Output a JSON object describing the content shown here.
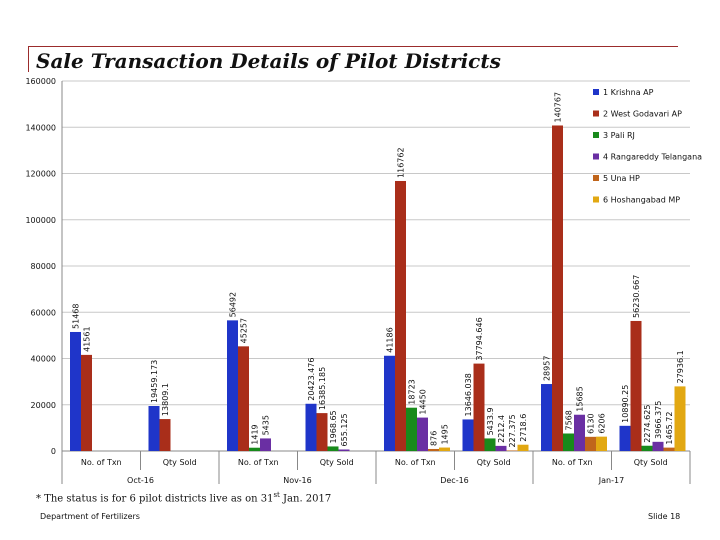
{
  "title": "Sale Transaction Details of Pilot Districts",
  "footnote": {
    "prefix": "* The status is for 6 pilot districts live as on 31",
    "sup": "st",
    "suffix": " Jan. 2017"
  },
  "footer": {
    "left": "Department of Fertilizers",
    "right": "Slide 18"
  },
  "colors": {
    "series": [
      "#1f35c9",
      "#a92e1a",
      "#188a1b",
      "#6a2fa3",
      "#c0651b",
      "#e2a812"
    ]
  },
  "chart_data": {
    "type": "bar",
    "ylim": [
      0,
      160000
    ],
    "yticks": [
      0,
      20000,
      40000,
      60000,
      80000,
      100000,
      120000,
      140000,
      160000
    ],
    "ytick_labels": [
      "0",
      "20000",
      "40000",
      "60000",
      "80000",
      "100000",
      "120000",
      "140000",
      "160000"
    ],
    "grid": true,
    "legend_position": "right",
    "months": [
      "Oct-16",
      "Nov-16",
      "Dec-16",
      "Jan-17"
    ],
    "metrics": [
      "No. of Txn",
      "Qty Sold"
    ],
    "categories": [
      "Oct-16 No. of Txn",
      "Oct-16 Qty Sold",
      "Nov-16 No. of Txn",
      "Nov-16 Qty Sold",
      "Dec-16 No. of Txn",
      "Dec-16 Qty Sold",
      "Jan-17 No. of Txn",
      "Jan-17 Qty Sold"
    ],
    "series": [
      {
        "name": "1 Krishna AP",
        "values": [
          51468,
          19459.173,
          56492,
          20423.476,
          41186,
          13646.038,
          28957,
          10890.25
        ],
        "labels": [
          "51468",
          "19459.173",
          "56492",
          "20423.476",
          "41186",
          "13646.038",
          "28957",
          "10890.25"
        ]
      },
      {
        "name": "2 West Godavari AP",
        "values": [
          41561,
          13809.1,
          45257,
          16385.185,
          116762,
          37794.646,
          140767,
          56230.667
        ],
        "labels": [
          "41561",
          "13809.1",
          "45257",
          "16385.185",
          "116762",
          "37794.646",
          "140767",
          "56230.667"
        ]
      },
      {
        "name": "3 Pali RJ",
        "values": [
          null,
          null,
          1419,
          1968.65,
          18723,
          5433.9,
          7568,
          2274.625
        ],
        "labels": [
          "",
          "",
          "1419",
          "1968.65",
          "18723",
          "5433.9",
          "7568",
          "2274.625"
        ]
      },
      {
        "name": "4 Rangareddy Telangana",
        "values": [
          null,
          null,
          5435,
          655.125,
          14450,
          2212.4,
          15685,
          3966.375
        ],
        "labels": [
          "",
          "",
          "5435",
          "655.125",
          "14450",
          "2212.4",
          "15685",
          "3966.375"
        ]
      },
      {
        "name": "5 Una HP",
        "values": [
          null,
          null,
          null,
          null,
          876,
          227.375,
          6130,
          1465.72
        ],
        "labels": [
          "",
          "",
          "",
          "",
          "876",
          "227.375",
          "6130",
          "1465.72"
        ]
      },
      {
        "name": "6 Hoshangabad MP",
        "values": [
          null,
          null,
          null,
          null,
          1495,
          2718.6,
          6206,
          27936.1
        ],
        "labels": [
          "",
          "",
          "",
          "",
          "1495",
          "2718.6",
          "6206",
          "27936.1"
        ]
      }
    ]
  }
}
